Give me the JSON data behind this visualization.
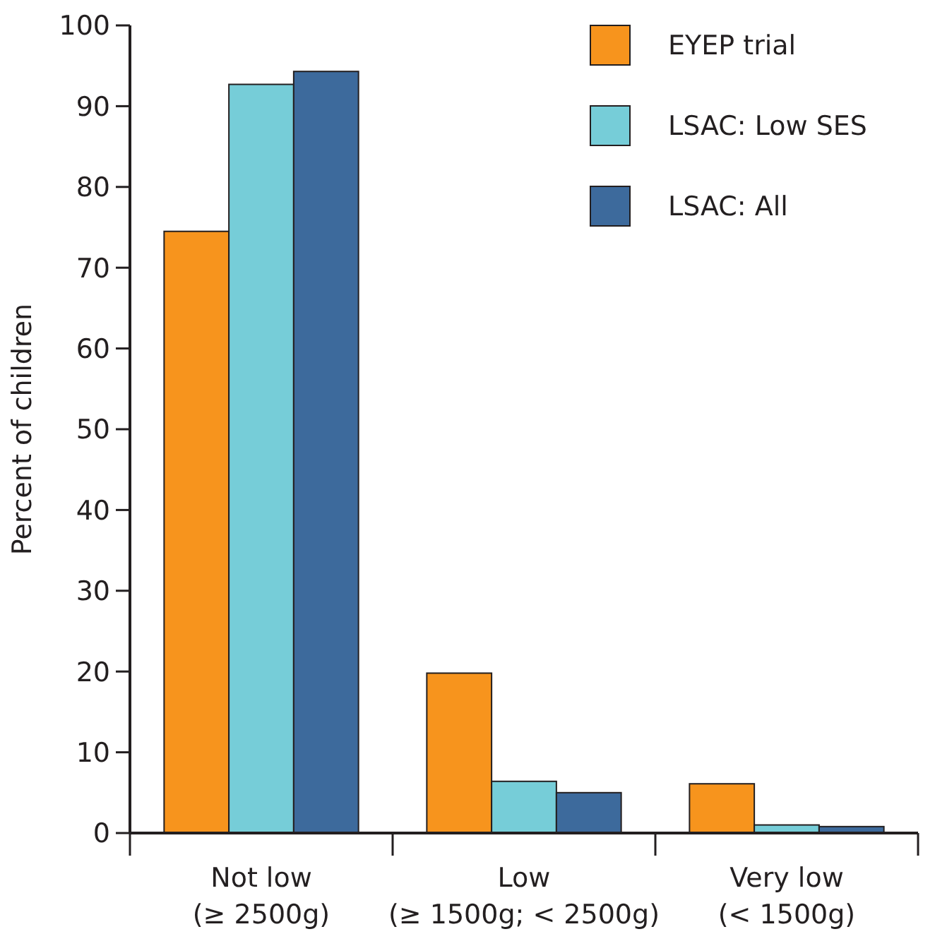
{
  "chart_data": {
    "type": "bar",
    "ylabel": "Percent of children",
    "categories": [
      "Not low\n(≥ 2500g)",
      "Low\n(≥ 1500g; < 2500g)",
      "Very low\n(< 1500g)"
    ],
    "series": [
      {
        "name": "EYEP trial",
        "color": "#f7941d",
        "values": [
          74.5,
          19.8,
          6.1
        ]
      },
      {
        "name": "LSAC: Low SES",
        "color": "#76cdd8",
        "values": [
          92.7,
          6.4,
          1.0
        ]
      },
      {
        "name": "LSAC: All",
        "color": "#3d6a9c",
        "values": [
          94.3,
          5.0,
          0.8
        ]
      }
    ],
    "ylim": [
      0,
      100
    ],
    "yticks": [
      0,
      10,
      20,
      30,
      40,
      50,
      60,
      70,
      80,
      90,
      100
    ],
    "grid": false,
    "legend": "top right"
  }
}
